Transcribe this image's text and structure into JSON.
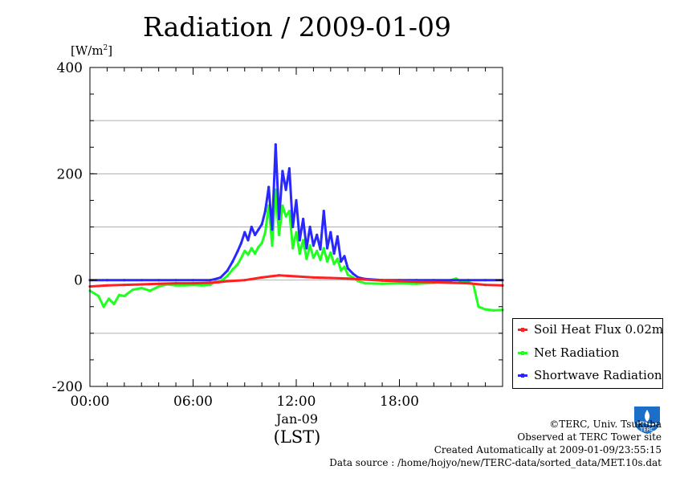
{
  "chart_data": {
    "type": "line",
    "title": "Radiation / 2009-01-09",
    "ylabel_unit": "[W/m",
    "ylabel_unit_sup": "2",
    "ylabel_unit_close": "]",
    "xlabel": "(LST)",
    "x_category_label": "Jan-09",
    "ylim": [
      -200,
      400
    ],
    "xlim_hours": [
      0,
      24
    ],
    "y_ticks": [
      {
        "value": 400,
        "label": "400"
      },
      {
        "value": 200,
        "label": "200"
      },
      {
        "value": 0,
        "label": "0"
      },
      {
        "value": -200,
        "label": "-200"
      }
    ],
    "x_ticks": [
      {
        "hour": 0,
        "label": "00:00"
      },
      {
        "hour": 6,
        "label": "06:00"
      },
      {
        "hour": 12,
        "label": "12:00"
      },
      {
        "hour": 18,
        "label": "18:00"
      }
    ],
    "gridlines_y": [
      300,
      200,
      100,
      0,
      -100
    ],
    "series": [
      {
        "name": "Soil Heat Flux 0.02m",
        "color": "#ff2020",
        "points": [
          [
            0,
            -12
          ],
          [
            1,
            -10
          ],
          [
            2,
            -9
          ],
          [
            3,
            -8
          ],
          [
            4,
            -7
          ],
          [
            5,
            -6
          ],
          [
            6,
            -6
          ],
          [
            7,
            -5
          ],
          [
            7.5,
            -4
          ],
          [
            8,
            -2
          ],
          [
            9,
            0
          ],
          [
            10,
            5
          ],
          [
            10.5,
            7
          ],
          [
            11,
            9
          ],
          [
            11.5,
            8
          ],
          [
            12,
            7
          ],
          [
            13,
            5
          ],
          [
            14,
            4
          ],
          [
            15,
            3
          ],
          [
            16,
            1
          ],
          [
            17,
            -1
          ],
          [
            18,
            -2
          ],
          [
            19,
            -3
          ],
          [
            20,
            -4
          ],
          [
            21,
            -5
          ],
          [
            22,
            -6
          ],
          [
            23,
            -9
          ],
          [
            24,
            -10
          ]
        ]
      },
      {
        "name": "Net Radiation",
        "color": "#20ff20",
        "points": [
          [
            0,
            -20
          ],
          [
            0.5,
            -30
          ],
          [
            0.8,
            -50
          ],
          [
            1.1,
            -35
          ],
          [
            1.4,
            -45
          ],
          [
            1.7,
            -28
          ],
          [
            2,
            -30
          ],
          [
            2.5,
            -18
          ],
          [
            3,
            -15
          ],
          [
            3.5,
            -20
          ],
          [
            4,
            -12
          ],
          [
            4.5,
            -8
          ],
          [
            5,
            -10
          ],
          [
            5.5,
            -10
          ],
          [
            6,
            -9
          ],
          [
            6.5,
            -10
          ],
          [
            7,
            -9
          ],
          [
            7.3,
            -2
          ],
          [
            7.5,
            -3
          ],
          [
            7.7,
            0
          ],
          [
            8,
            8
          ],
          [
            8.3,
            20
          ],
          [
            8.6,
            30
          ],
          [
            8.8,
            42
          ],
          [
            9.0,
            55
          ],
          [
            9.2,
            48
          ],
          [
            9.4,
            60
          ],
          [
            9.6,
            50
          ],
          [
            9.8,
            62
          ],
          [
            10.0,
            70
          ],
          [
            10.2,
            90
          ],
          [
            10.4,
            140
          ],
          [
            10.6,
            65
          ],
          [
            10.8,
            170
          ],
          [
            11.0,
            85
          ],
          [
            11.2,
            140
          ],
          [
            11.4,
            120
          ],
          [
            11.6,
            130
          ],
          [
            11.8,
            60
          ],
          [
            12.0,
            90
          ],
          [
            12.2,
            50
          ],
          [
            12.4,
            75
          ],
          [
            12.6,
            40
          ],
          [
            12.8,
            65
          ],
          [
            13.0,
            42
          ],
          [
            13.2,
            55
          ],
          [
            13.4,
            38
          ],
          [
            13.6,
            60
          ],
          [
            13.8,
            35
          ],
          [
            14.0,
            52
          ],
          [
            14.2,
            30
          ],
          [
            14.4,
            40
          ],
          [
            14.6,
            18
          ],
          [
            14.8,
            25
          ],
          [
            15.0,
            10
          ],
          [
            15.3,
            5
          ],
          [
            15.6,
            -2
          ],
          [
            16,
            -6
          ],
          [
            17,
            -7
          ],
          [
            18,
            -6
          ],
          [
            19,
            -7
          ],
          [
            20,
            -5
          ],
          [
            20.5,
            -3
          ],
          [
            21,
            0
          ],
          [
            21.3,
            3
          ],
          [
            21.6,
            -4
          ],
          [
            22,
            -3
          ],
          [
            22.3,
            -8
          ],
          [
            22.6,
            -50
          ],
          [
            23,
            -55
          ],
          [
            23.5,
            -57
          ],
          [
            24,
            -56
          ]
        ]
      },
      {
        "name": "Shortwave Radiation",
        "color": "#2828ff",
        "points": [
          [
            0,
            0
          ],
          [
            1,
            0
          ],
          [
            2,
            0
          ],
          [
            3,
            0
          ],
          [
            4,
            0
          ],
          [
            5,
            0
          ],
          [
            6,
            0
          ],
          [
            7,
            0
          ],
          [
            7.3,
            2
          ],
          [
            7.6,
            5
          ],
          [
            8,
            18
          ],
          [
            8.3,
            35
          ],
          [
            8.6,
            55
          ],
          [
            8.8,
            70
          ],
          [
            9.0,
            90
          ],
          [
            9.2,
            75
          ],
          [
            9.4,
            100
          ],
          [
            9.6,
            85
          ],
          [
            9.8,
            95
          ],
          [
            10.0,
            105
          ],
          [
            10.2,
            130
          ],
          [
            10.4,
            175
          ],
          [
            10.6,
            95
          ],
          [
            10.8,
            255
          ],
          [
            11.0,
            115
          ],
          [
            11.2,
            205
          ],
          [
            11.4,
            170
          ],
          [
            11.6,
            210
          ],
          [
            11.8,
            100
          ],
          [
            12.0,
            150
          ],
          [
            12.2,
            75
          ],
          [
            12.4,
            115
          ],
          [
            12.6,
            60
          ],
          [
            12.8,
            100
          ],
          [
            13.0,
            65
          ],
          [
            13.2,
            85
          ],
          [
            13.4,
            58
          ],
          [
            13.6,
            130
          ],
          [
            13.8,
            60
          ],
          [
            14.0,
            90
          ],
          [
            14.2,
            50
          ],
          [
            14.4,
            82
          ],
          [
            14.6,
            35
          ],
          [
            14.8,
            45
          ],
          [
            15.0,
            22
          ],
          [
            15.3,
            12
          ],
          [
            15.6,
            5
          ],
          [
            16,
            2
          ],
          [
            17,
            0
          ],
          [
            18,
            0
          ],
          [
            19,
            0
          ],
          [
            20,
            0
          ],
          [
            21,
            0
          ],
          [
            22,
            0
          ],
          [
            23,
            0
          ],
          [
            24,
            0
          ]
        ]
      }
    ]
  },
  "legend": {
    "items": [
      {
        "label": "Soil Heat Flux 0.02m",
        "color": "#ff2020"
      },
      {
        "label": "Net Radiation",
        "color": "#20ff20"
      },
      {
        "label": "Shortwave Radiation",
        "color": "#2828ff"
      }
    ]
  },
  "credits": {
    "copyright": "©TERC, Univ. Tsukuba",
    "observed": "Observed at TERC Tower site",
    "created": "Created Automatically at 2009-01-09/23:55:15",
    "source": "Data source : /home/hojyo/new/TERC-data/sorted_data/MET.10s.dat",
    "logo_text": "TERC"
  }
}
